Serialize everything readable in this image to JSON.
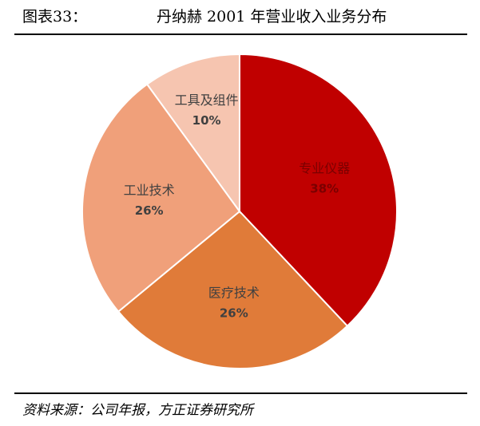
{
  "chart_data": {
    "type": "pie",
    "figure_label": "图表33：",
    "title": "丹纳赫 2001 年营业收入业务分布",
    "categories": [
      "专业仪器",
      "医疗技术",
      "工业技术",
      "工具及组件"
    ],
    "values": [
      38,
      26,
      26,
      10
    ],
    "value_labels": [
      "38%",
      "26%",
      "26%",
      "10%"
    ],
    "colors": [
      "#c00000",
      "#e07b39",
      "#f0a07a",
      "#f6c5b0"
    ],
    "source": "资料来源：公司年报，方正证券研究所"
  }
}
